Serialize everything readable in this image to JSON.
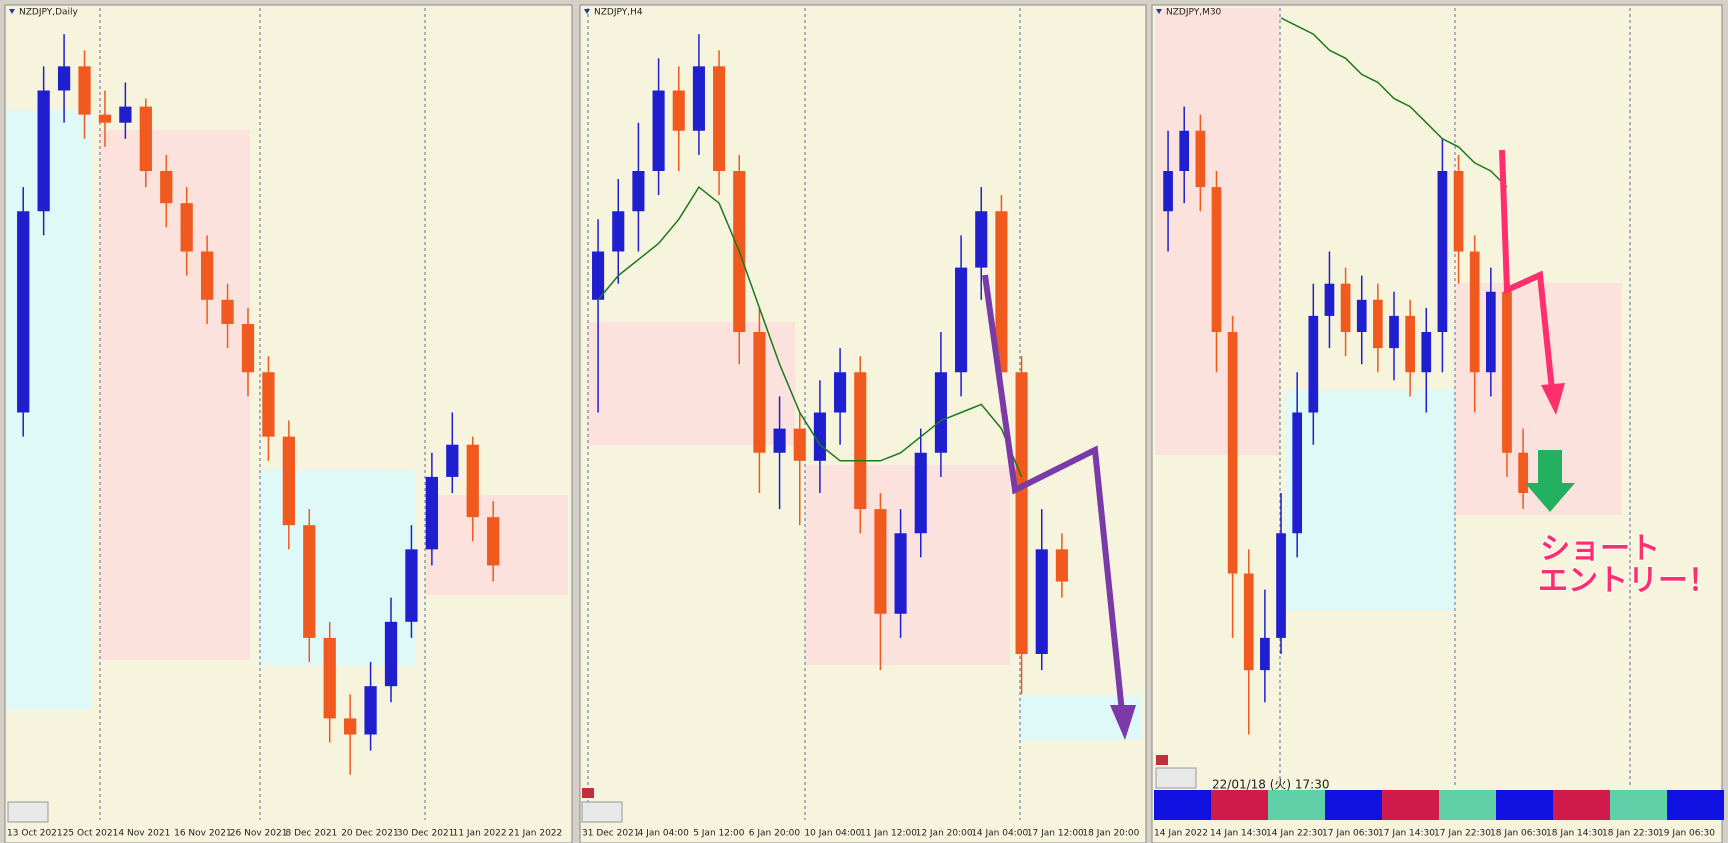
{
  "chart_data": [
    {
      "type": "candlestick",
      "title": "NZDJPY,Daily",
      "up_color": "#1f1fd0",
      "down_color": "#f05a1e",
      "ylim": [
        0,
        100
      ],
      "xticks": [
        "13 Oct 2021",
        "25 Oct 2021",
        "4 Nov 2021",
        "16 Nov 2021",
        "26 Nov 2021",
        "8 Dec 2021",
        "20 Dec 2021",
        "30 Dec 2021",
        "11 Jan 2022",
        "21 Jan 2022"
      ],
      "open": [
        50,
        75,
        90,
        93,
        87,
        86,
        88,
        80,
        76,
        70,
        64,
        61,
        55,
        47,
        36,
        22,
        12,
        10,
        16,
        24,
        33,
        42,
        46,
        37
      ],
      "high": [
        78,
        93,
        97,
        95,
        90,
        91,
        89,
        82,
        78,
        72,
        66,
        63,
        57,
        49,
        38,
        24,
        15,
        19,
        27,
        36,
        45,
        50,
        47,
        39
      ],
      "low": [
        47,
        72,
        86,
        84,
        83,
        84,
        78,
        73,
        67,
        61,
        58,
        52,
        44,
        33,
        19,
        9,
        5,
        8,
        14,
        22,
        31,
        40,
        34,
        29
      ],
      "close": [
        75,
        90,
        93,
        87,
        86,
        88,
        80,
        76,
        70,
        64,
        61,
        55,
        47,
        36,
        22,
        12,
        10,
        16,
        24,
        33,
        42,
        46,
        37,
        31
      ]
    },
    {
      "type": "candlestick",
      "title": "NZDJPY,H4",
      "up_color": "#1f1fd0",
      "down_color": "#f05a1e",
      "ma_color": "#1a7a1a",
      "ylim": [
        0,
        100
      ],
      "xticks": [
        "31 Dec 2021",
        "4 Jan 04:00",
        "5 Jan 12:00",
        "6 Jan 20:00",
        "10 Jan 04:00",
        "11 Jan 12:00",
        "12 Jan 20:00",
        "14 Jan 04:00",
        "17 Jan 12:00",
        "18 Jan 20:00"
      ],
      "open": [
        64,
        70,
        75,
        80,
        90,
        85,
        93,
        80,
        60,
        45,
        48,
        44,
        50,
        55,
        38,
        25,
        35,
        45,
        55,
        68,
        75,
        55,
        20,
        33
      ],
      "high": [
        74,
        79,
        86,
        94,
        93,
        97,
        95,
        82,
        63,
        52,
        50,
        54,
        58,
        57,
        40,
        38,
        48,
        60,
        72,
        78,
        77,
        57,
        38,
        35
      ],
      "low": [
        50,
        66,
        70,
        77,
        80,
        82,
        77,
        56,
        40,
        38,
        36,
        40,
        46,
        35,
        18,
        22,
        32,
        42,
        52,
        64,
        50,
        15,
        18,
        27
      ],
      "close": [
        70,
        75,
        80,
        90,
        85,
        93,
        80,
        60,
        45,
        48,
        44,
        50,
        55,
        38,
        25,
        35,
        45,
        55,
        68,
        75,
        55,
        20,
        33,
        29
      ],
      "ma": [
        64,
        67,
        69,
        71,
        74,
        78,
        76,
        70,
        63,
        56,
        50,
        46,
        44,
        44,
        44,
        45,
        47,
        49,
        50,
        51,
        48,
        42,
        null,
        null
      ]
    },
    {
      "type": "candlestick",
      "title": "NZDJPY,M30",
      "up_color": "#1f1fd0",
      "down_color": "#f05a1e",
      "ma_color": "#1a7a1a",
      "ylim": [
        0,
        100
      ],
      "xticks": [
        "14 Jan 2022",
        "14 Jan 14:30",
        "14 Jan 22:30",
        "17 Jan 06:30",
        "17 Jan 14:30",
        "17 Jan 22:30",
        "18 Jan 06:30",
        "18 Jan 14:30",
        "18 Jan 22:30",
        "19 Jan 06:30"
      ],
      "open": [
        75,
        80,
        85,
        78,
        60,
        30,
        18,
        22,
        35,
        50,
        62,
        66,
        60,
        64,
        58,
        62,
        55,
        60,
        80,
        70,
        55,
        65,
        45
      ],
      "high": [
        85,
        88,
        87,
        80,
        62,
        33,
        28,
        40,
        55,
        66,
        70,
        68,
        67,
        66,
        65,
        64,
        63,
        84,
        82,
        72,
        68,
        66,
        48
      ],
      "low": [
        70,
        76,
        75,
        55,
        22,
        10,
        14,
        20,
        32,
        46,
        58,
        57,
        56,
        55,
        54,
        52,
        50,
        55,
        66,
        50,
        52,
        42,
        38
      ],
      "close": [
        80,
        85,
        78,
        60,
        30,
        18,
        22,
        35,
        50,
        62,
        66,
        60,
        64,
        58,
        62,
        55,
        60,
        80,
        70,
        55,
        65,
        45,
        40
      ],
      "ma": [
        null,
        null,
        null,
        null,
        null,
        null,
        null,
        99,
        98,
        97,
        95,
        94,
        92,
        91,
        89,
        88,
        86,
        84,
        83,
        81,
        80,
        78,
        null
      ],
      "timestamp": "22/01/18 (火) 17:30",
      "annotation": [
        "ショート",
        "エントリー！"
      ]
    }
  ]
}
